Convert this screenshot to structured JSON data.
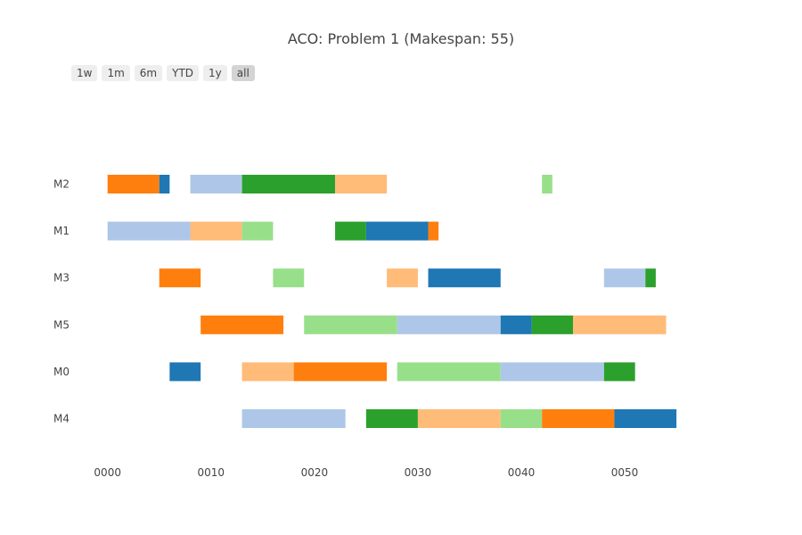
{
  "title": "ACO: Problem 1 (Makespan: 55)",
  "range_buttons": [
    {
      "label": "1w",
      "active": false
    },
    {
      "label": "1m",
      "active": false
    },
    {
      "label": "6m",
      "active": false
    },
    {
      "label": "YTD",
      "active": false
    },
    {
      "label": "1y",
      "active": false
    },
    {
      "label": "all",
      "active": true
    }
  ],
  "chart_data": {
    "type": "gantt",
    "machines": [
      "M2",
      "M1",
      "M3",
      "M5",
      "M0",
      "M4"
    ],
    "xlim": [
      0,
      55
    ],
    "x_ticks": [
      {
        "value": 0,
        "label": "0000"
      },
      {
        "value": 10,
        "label": "0010"
      },
      {
        "value": 20,
        "label": "0020"
      },
      {
        "value": 30,
        "label": "0030"
      },
      {
        "value": 40,
        "label": "0040"
      },
      {
        "value": 50,
        "label": "0050"
      }
    ],
    "job_colors": [
      "#ff7f0e",
      "#1f77b4",
      "#aec7e8",
      "#2ca02c",
      "#ffbb78",
      "#98df8a"
    ],
    "tasks": [
      {
        "machine": "M2",
        "job": 0,
        "start": 0,
        "end": 5
      },
      {
        "machine": "M2",
        "job": 1,
        "start": 5,
        "end": 6
      },
      {
        "machine": "M2",
        "job": 2,
        "start": 8,
        "end": 13
      },
      {
        "machine": "M2",
        "job": 3,
        "start": 13,
        "end": 22
      },
      {
        "machine": "M2",
        "job": 4,
        "start": 22,
        "end": 27
      },
      {
        "machine": "M2",
        "job": 5,
        "start": 42,
        "end": 43
      },
      {
        "machine": "M1",
        "job": 2,
        "start": 0,
        "end": 8
      },
      {
        "machine": "M1",
        "job": 4,
        "start": 8,
        "end": 13
      },
      {
        "machine": "M1",
        "job": 5,
        "start": 13,
        "end": 16
      },
      {
        "machine": "M1",
        "job": 3,
        "start": 22,
        "end": 25
      },
      {
        "machine": "M1",
        "job": 1,
        "start": 25,
        "end": 31
      },
      {
        "machine": "M1",
        "job": 0,
        "start": 31,
        "end": 32
      },
      {
        "machine": "M3",
        "job": 0,
        "start": 5,
        "end": 9
      },
      {
        "machine": "M3",
        "job": 5,
        "start": 16,
        "end": 19
      },
      {
        "machine": "M3",
        "job": 4,
        "start": 27,
        "end": 30
      },
      {
        "machine": "M3",
        "job": 1,
        "start": 31,
        "end": 38
      },
      {
        "machine": "M3",
        "job": 2,
        "start": 48,
        "end": 52
      },
      {
        "machine": "M3",
        "job": 3,
        "start": 52,
        "end": 53
      },
      {
        "machine": "M5",
        "job": 0,
        "start": 9,
        "end": 17
      },
      {
        "machine": "M5",
        "job": 5,
        "start": 19,
        "end": 28
      },
      {
        "machine": "M5",
        "job": 2,
        "start": 28,
        "end": 38
      },
      {
        "machine": "M5",
        "job": 1,
        "start": 38,
        "end": 41
      },
      {
        "machine": "M5",
        "job": 3,
        "start": 41,
        "end": 45
      },
      {
        "machine": "M5",
        "job": 4,
        "start": 45,
        "end": 54
      },
      {
        "machine": "M0",
        "job": 1,
        "start": 6,
        "end": 9
      },
      {
        "machine": "M0",
        "job": 4,
        "start": 13,
        "end": 18
      },
      {
        "machine": "M0",
        "job": 0,
        "start": 18,
        "end": 27
      },
      {
        "machine": "M0",
        "job": 5,
        "start": 28,
        "end": 38
      },
      {
        "machine": "M0",
        "job": 2,
        "start": 38,
        "end": 48
      },
      {
        "machine": "M0",
        "job": 3,
        "start": 48,
        "end": 51
      },
      {
        "machine": "M4",
        "job": 2,
        "start": 13,
        "end": 23
      },
      {
        "machine": "M4",
        "job": 3,
        "start": 25,
        "end": 30
      },
      {
        "machine": "M4",
        "job": 4,
        "start": 30,
        "end": 38
      },
      {
        "machine": "M4",
        "job": 5,
        "start": 38,
        "end": 42
      },
      {
        "machine": "M4",
        "job": 0,
        "start": 42,
        "end": 49
      },
      {
        "machine": "M4",
        "job": 1,
        "start": 49,
        "end": 55
      }
    ]
  }
}
